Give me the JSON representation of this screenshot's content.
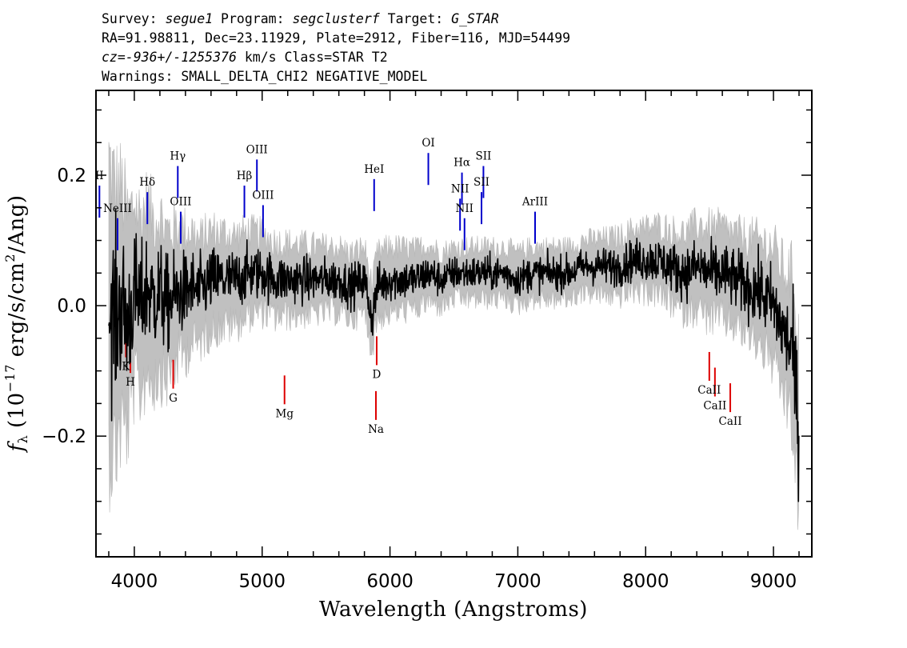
{
  "header": {
    "line1": [
      {
        "t": "Survey: ",
        "it": false
      },
      {
        "t": "segue1",
        "it": true
      },
      {
        "t": " Program: ",
        "it": false
      },
      {
        "t": "segclusterf",
        "it": true
      },
      {
        "t": " Target: ",
        "it": false
      },
      {
        "t": "G_STAR",
        "it": true
      }
    ],
    "line2": "RA=91.98811, Dec=23.11929, Plate=2912, Fiber=116, MJD=54499",
    "line3": [
      {
        "t": "cz=-936+/-1255376",
        "it": true
      },
      {
        "t": " km/s Class=STAR T2",
        "it": false
      }
    ],
    "line4": "Warnings: SMALL_DELTA_CHI2 NEGATIVE_MODEL"
  },
  "chart_data": {
    "type": "line",
    "xlabel": "Wavelength (Angstroms)",
    "ylabel": "f_λ (10^-17 erg/s/cm^2/Ang)",
    "xlim": [
      3700,
      9300
    ],
    "ylim": [
      -0.385,
      0.33
    ],
    "x_ticks": [
      4000,
      5000,
      6000,
      7000,
      8000,
      9000
    ],
    "y_ticks": [
      -0.2,
      0.0,
      0.2
    ],
    "y_tick_labels": [
      "−0.2",
      "0.0",
      "0.2"
    ],
    "grid": false,
    "colors": {
      "flux": "#000000",
      "error_band": "#c0c0c0",
      "emission": "#0000cc",
      "absorption": "#dd0000"
    },
    "series": [
      {
        "role": "flux",
        "x": [
          3800,
          3850,
          3900,
          3950,
          4000,
          4050,
          4100,
          4150,
          4200,
          4250,
          4300,
          4350,
          4400,
          4450,
          4500,
          4600,
          4700,
          4800,
          4900,
          5000,
          5100,
          5200,
          5300,
          5400,
          5500,
          5600,
          5700,
          5800,
          5860,
          5900,
          6000,
          6100,
          6200,
          6300,
          6400,
          6500,
          6600,
          6700,
          6800,
          6900,
          7000,
          7100,
          7200,
          7300,
          7400,
          7500,
          7600,
          7700,
          7800,
          7900,
          8000,
          8100,
          8200,
          8300,
          8400,
          8500,
          8600,
          8700,
          8800,
          8900,
          9000,
          9100,
          9150,
          9200
        ],
        "y": [
          0.0,
          -0.02,
          0.0,
          -0.03,
          0.02,
          0.0,
          0.03,
          0.01,
          0.02,
          0.0,
          0.01,
          0.02,
          0.02,
          0.03,
          0.02,
          0.04,
          0.04,
          0.04,
          0.05,
          0.05,
          0.04,
          0.04,
          0.04,
          0.04,
          0.04,
          0.04,
          0.03,
          0.04,
          -0.02,
          0.03,
          0.04,
          0.04,
          0.04,
          0.05,
          0.04,
          0.05,
          0.05,
          0.05,
          0.05,
          0.05,
          0.04,
          0.05,
          0.05,
          0.05,
          0.05,
          0.06,
          0.06,
          0.06,
          0.06,
          0.07,
          0.07,
          0.07,
          0.06,
          0.05,
          0.06,
          0.05,
          0.05,
          0.04,
          0.03,
          0.02,
          0.0,
          -0.05,
          -0.07,
          -0.19
        ]
      },
      {
        "role": "error",
        "x": [
          3800,
          3900,
          4000,
          4200,
          4500,
          5000,
          5500,
          6000,
          6500,
          7000,
          7500,
          8000,
          8300,
          8500,
          8700,
          8900,
          9100,
          9200
        ],
        "y": [
          0.22,
          0.18,
          0.14,
          0.12,
          0.08,
          0.06,
          0.05,
          0.05,
          0.04,
          0.04,
          0.04,
          0.05,
          0.06,
          0.07,
          0.07,
          0.08,
          0.1,
          0.14
        ]
      }
    ],
    "emission_lines": [
      {
        "label": "NeIII",
        "wave": 3869
      },
      {
        "label": "Hδ",
        "wave": 4102
      },
      {
        "label": "Hγ",
        "wave": 4340
      },
      {
        "label": "OIII",
        "wave": 4363
      },
      {
        "label": "Hβ",
        "wave": 4861
      },
      {
        "label": "OIII",
        "wave": 4959
      },
      {
        "label": "OIII",
        "wave": 5007
      },
      {
        "label": "HeI",
        "wave": 5876
      },
      {
        "label": "OI",
        "wave": 6300
      },
      {
        "label": "NII",
        "wave": 6548
      },
      {
        "label": "Hα",
        "wave": 6563
      },
      {
        "label": "NII",
        "wave": 6583
      },
      {
        "label": "SII",
        "wave": 6716
      },
      {
        "label": "SII",
        "wave": 6731
      },
      {
        "label": "ArIII",
        "wave": 7135
      },
      {
        "label": "II",
        "wave": 3727
      }
    ],
    "absorption_lines": [
      {
        "label": "K",
        "wave": 3934
      },
      {
        "label": "H",
        "wave": 3969
      },
      {
        "label": "G",
        "wave": 4304
      },
      {
        "label": "Mg",
        "wave": 5175
      },
      {
        "label": "Na",
        "wave": 5890
      },
      {
        "label": "D",
        "wave": 5896
      },
      {
        "label": "CaII",
        "wave": 8498
      },
      {
        "label": "CaII",
        "wave": 8542
      },
      {
        "label": "CaII",
        "wave": 8662
      }
    ]
  }
}
